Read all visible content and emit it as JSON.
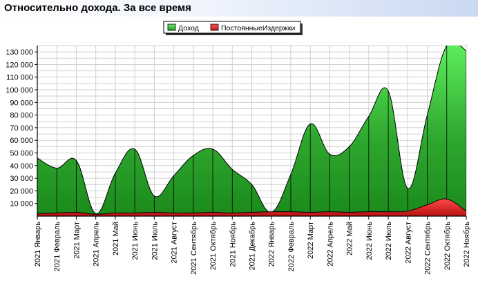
{
  "header": {
    "title": "Относительно дохода. За все время"
  },
  "colors": {
    "income": "#2fa82f",
    "costs": "#d81c1c",
    "header_gradient_end": "#c9d9f1"
  },
  "chart_data": {
    "type": "area",
    "grid": true,
    "legend_position": "top-center",
    "ylim": [
      0,
      135000
    ],
    "yticks": [
      10000,
      20000,
      30000,
      40000,
      50000,
      60000,
      70000,
      80000,
      90000,
      100000,
      110000,
      120000,
      130000
    ],
    "ytick_labels": [
      "10 000",
      "20 000",
      "30 000",
      "40 000",
      "50 000",
      "60 000",
      "70 000",
      "80 000",
      "90 000",
      "100 000",
      "110 000",
      "120 000",
      "130 000"
    ],
    "categories": [
      "2021 Январь",
      "2021 Февраль",
      "2021 Март",
      "2021 Апрель",
      "2021 Май",
      "2021 Июнь",
      "2021 Июль",
      "2021 Август",
      "2021 Сентябрь",
      "2021 Октябрь",
      "2021 Ноябрь",
      "2021 Декабрь",
      "2022 Январь",
      "2022 Февраль",
      "2022 Март",
      "2022 Апрель",
      "2022 Май",
      "2022 Июнь",
      "2022 Июль",
      "2022 Август",
      "2022 Сентябрь",
      "2022 Октябрь",
      "2022 Ноябрь"
    ],
    "series": [
      {
        "name": "Доход",
        "values": [
          46000,
          38000,
          44000,
          2000,
          34000,
          53000,
          16000,
          32000,
          48000,
          53000,
          37000,
          25000,
          3000,
          33000,
          73000,
          49000,
          55000,
          79000,
          99000,
          22000,
          80000,
          150000,
          131000
        ]
      },
      {
        "name": "ПостоянныеИздержки",
        "values": [
          2000,
          2500,
          3000,
          1500,
          2500,
          2500,
          3000,
          2500,
          2500,
          3000,
          2500,
          3000,
          3500,
          3500,
          3000,
          3500,
          3000,
          3500,
          3500,
          4000,
          9000,
          13500,
          4000
        ]
      }
    ]
  }
}
